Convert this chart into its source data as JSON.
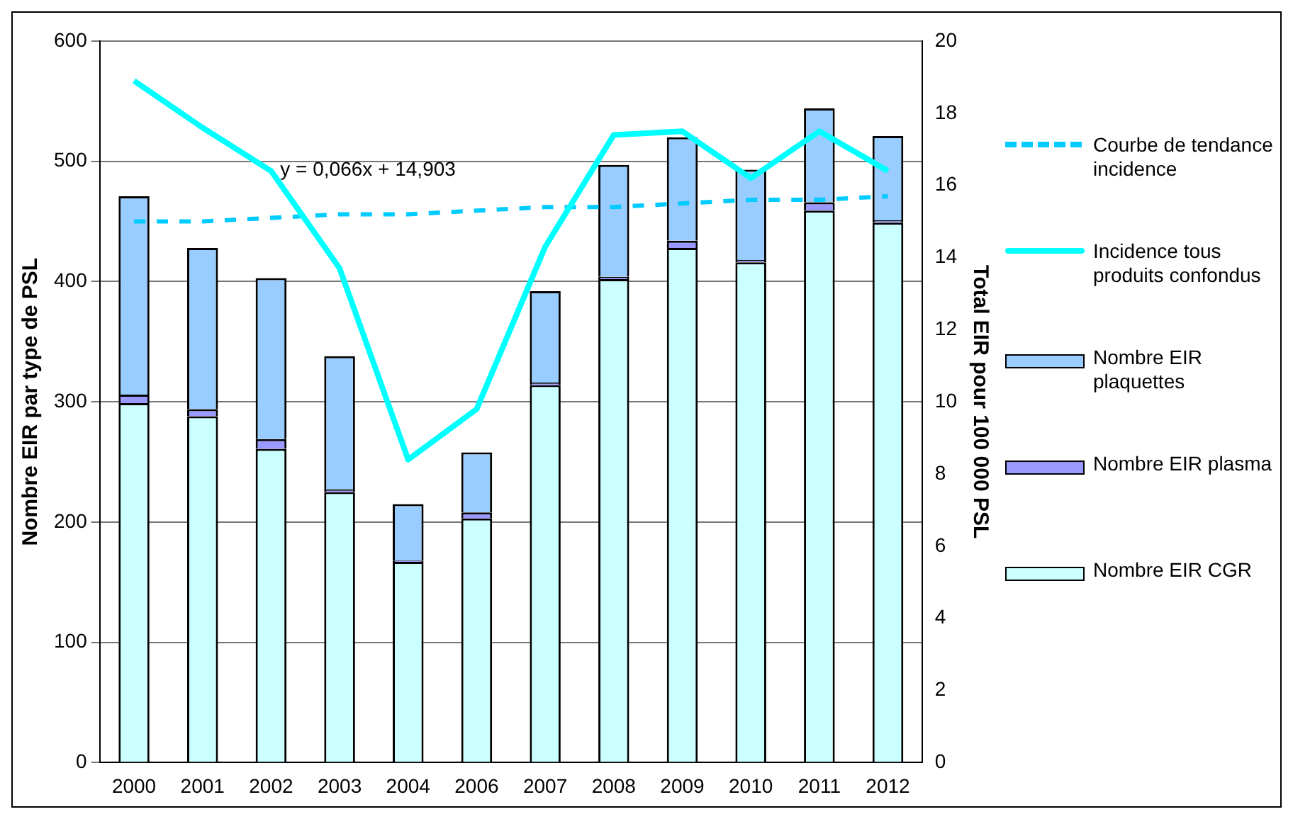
{
  "chart_data": {
    "type": "bar",
    "stacked": true,
    "categories": [
      "2000",
      "2001",
      "2002",
      "2003",
      "2004",
      "2006",
      "2007",
      "2008",
      "2009",
      "2010",
      "2011",
      "2012"
    ],
    "series": [
      {
        "name": "Nombre EIR CGR",
        "color": "#ccffff",
        "values": [
          299,
          288,
          261,
          225,
          167,
          203,
          314,
          402,
          428,
          416,
          459,
          449
        ]
      },
      {
        "name": "Nombre EIR plasma",
        "color": "#9999ff",
        "values": [
          7,
          6,
          8,
          2,
          1,
          5,
          2,
          2,
          6,
          2,
          7,
          2
        ]
      },
      {
        "name": "Nombre EIR plaquettes",
        "color": "#99ccff",
        "values": [
          165,
          134,
          134,
          111,
          47,
          50,
          76,
          93,
          86,
          75,
          78,
          70
        ]
      },
      {
        "name": "Incidence tous produits confondus",
        "type": "line",
        "axis": "y2",
        "color": "#00ffff",
        "line_style": "solid",
        "values": [
          18.9,
          17.6,
          16.4,
          13.7,
          8.4,
          9.8,
          14.3,
          17.4,
          17.5,
          16.2,
          17.5,
          16.4
        ]
      },
      {
        "name": "Courbe de tendance incidence",
        "type": "line",
        "axis": "y2",
        "color": "#00ccff",
        "line_style": "dashed",
        "values": [
          15.0,
          15.0,
          15.1,
          15.2,
          15.2,
          15.3,
          15.4,
          15.4,
          15.5,
          15.6,
          15.6,
          15.7
        ]
      }
    ],
    "ylabel": "Nombre EIR par type de PSL",
    "y2label": "Total EIR pour 100 000 PSL",
    "ylim": [
      0,
      600
    ],
    "yticks": [
      0,
      100,
      200,
      300,
      400,
      500,
      600
    ],
    "y2lim": [
      0,
      20
    ],
    "y2ticks": [
      0,
      2,
      4,
      6,
      8,
      10,
      12,
      14,
      16,
      18,
      20
    ],
    "grid": "y",
    "legend": "right",
    "marker": "none",
    "annotations": [
      "y = 0,066x + 14,903"
    ]
  }
}
